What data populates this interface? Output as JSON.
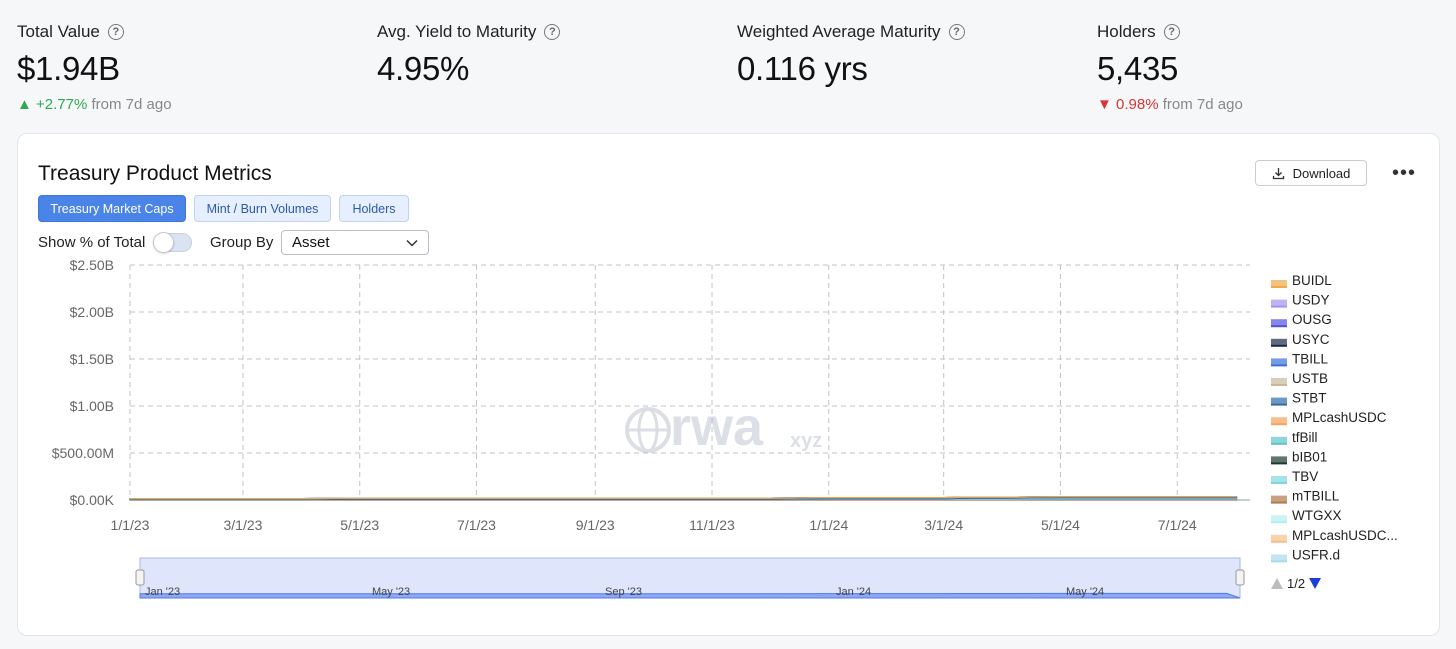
{
  "metrics": [
    {
      "label": "Total Value",
      "value": "$1.94B",
      "change_arrow": "▲",
      "change": "+2.77%",
      "change_suffix": "from 7d ago",
      "direction": "up"
    },
    {
      "label": "Avg. Yield to Maturity",
      "value": "4.95%"
    },
    {
      "label": "Weighted Average Maturity",
      "value": "0.116 yrs"
    },
    {
      "label": "Holders",
      "value": "5,435",
      "change_arrow": "▼",
      "change": "0.98%",
      "change_suffix": "from 7d ago",
      "direction": "down"
    }
  ],
  "help_glyph": "?",
  "card": {
    "title": "Treasury Product Metrics",
    "download_label": "Download",
    "more_label": "•••",
    "tabs": [
      {
        "label": "Treasury Market Caps",
        "active": true
      },
      {
        "label": "Mint / Burn Volumes",
        "active": false
      },
      {
        "label": "Holders",
        "active": false
      }
    ],
    "show_pct_label": "Show % of Total",
    "show_pct_enabled": false,
    "group_by_label": "Group By",
    "group_by_value": "Asset"
  },
  "watermark": {
    "text": "rwa",
    "suffix": "xyz"
  },
  "legend_page": "1/2",
  "colors": {
    "accent": "#4a84e8",
    "up": "#2fa84f",
    "down": "#d93535"
  },
  "chart_data": {
    "type": "area",
    "stacked": true,
    "grid": true,
    "legend_position": "right",
    "x": [
      "1/1/23",
      "2/1/23",
      "3/1/23",
      "4/1/23",
      "5/1/23",
      "6/1/23",
      "7/1/23",
      "8/1/23",
      "9/1/23",
      "10/1/23",
      "11/1/23",
      "12/1/23",
      "1/1/24",
      "2/1/24",
      "3/1/24",
      "3/15/24",
      "4/1/24",
      "5/1/24",
      "6/1/24",
      "7/1/24",
      "8/1/24"
    ],
    "x_tick_labels": [
      "1/1/23",
      "3/1/23",
      "5/1/23",
      "7/1/23",
      "9/1/23",
      "11/1/23",
      "1/1/24",
      "3/1/24",
      "5/1/24",
      "7/1/24"
    ],
    "ylim": [
      0,
      2500000000
    ],
    "y_tick_labels": [
      "$0.00K",
      "$500.00M",
      "$1.00B",
      "$1.50B",
      "$2.00B",
      "$2.50B"
    ],
    "navigator_labels": [
      "Jan '23",
      "May '23",
      "Sep '23",
      "Jan '24",
      "May '24"
    ],
    "series": [
      {
        "name": "mTBILL",
        "color": "#b07a4a",
        "values": [
          5,
          5,
          5,
          5,
          5,
          5,
          5,
          5,
          5,
          5,
          5,
          5,
          5,
          5,
          5,
          5,
          5,
          5,
          5,
          5,
          5
        ]
      },
      {
        "name": "TBILL",
        "color": "#3e6fd8",
        "values": [
          0,
          0,
          0,
          0,
          5,
          5,
          5,
          5,
          5,
          5,
          5,
          5,
          5,
          5,
          5,
          5,
          5,
          5,
          5,
          5,
          5
        ]
      },
      {
        "name": "tfBill",
        "color": "#5ec4c8",
        "values": [
          0,
          0,
          0,
          0,
          0,
          0,
          0,
          0,
          0,
          0,
          0,
          0,
          0,
          0,
          0,
          0,
          0,
          5,
          5,
          5,
          5
        ]
      },
      {
        "name": "USTB",
        "color": "#c7b99b",
        "values": [
          0,
          0,
          0,
          0,
          0,
          0,
          0,
          0,
          0,
          0,
          0,
          0,
          5,
          5,
          5,
          5,
          5,
          5,
          5,
          5,
          5
        ]
      },
      {
        "name": "USFR.d",
        "color": "#a8dbe8",
        "values": [
          0,
          0,
          0,
          0,
          0,
          0,
          0,
          0,
          0,
          0,
          0,
          0,
          0,
          0,
          0,
          5,
          5,
          5,
          5,
          5,
          5
        ]
      },
      {
        "name": "bIB01",
        "color": "#1d3b2e",
        "values": [
          0,
          0,
          0,
          0,
          0,
          0,
          0,
          0,
          0,
          0,
          0,
          0,
          0,
          0,
          0,
          0,
          0,
          0,
          0,
          0,
          0
        ]
      },
      {
        "name": "STBT",
        "color": "#2f6ea5",
        "values": [
          10,
          10,
          10,
          10,
          10,
          10,
          10,
          10,
          10,
          10,
          10,
          10,
          10,
          10,
          10,
          10,
          10,
          10,
          10,
          10,
          10
        ]
      },
      {
        "name": "MPLcashUSDC",
        "color": "#f3a45a",
        "values": [
          0,
          0,
          0,
          0,
          0,
          0,
          0,
          0,
          0,
          0,
          0,
          0,
          0,
          0,
          0,
          0,
          0,
          0,
          0,
          0,
          0
        ]
      },
      {
        "name": "MPLcashUSDC...",
        "color": "#f7bf8c",
        "values": [
          0,
          0,
          0,
          0,
          0,
          0,
          0,
          0,
          0,
          0,
          0,
          0,
          0,
          0,
          0,
          0,
          0,
          0,
          0,
          0,
          0
        ]
      },
      {
        "name": "TBV",
        "color": "#7dd8e0",
        "values": [
          0,
          0,
          0,
          0,
          0,
          0,
          0,
          0,
          0,
          0,
          0,
          0,
          0,
          0,
          0,
          0,
          0,
          0,
          0,
          0,
          0
        ]
      },
      {
        "name": "WTGXX",
        "color": "#b7ecef",
        "values": [
          0,
          0,
          0,
          0,
          0,
          0,
          0,
          0,
          0,
          0,
          0,
          0,
          0,
          0,
          0,
          0,
          0,
          0,
          0,
          0,
          0
        ]
      },
      {
        "name": "USYC",
        "color": "#1a2d47",
        "values": [
          0,
          0,
          0,
          0,
          0,
          0,
          0,
          0,
          0,
          0,
          0,
          0,
          0,
          0,
          0,
          0,
          0,
          0,
          0,
          0,
          0
        ]
      },
      {
        "name": "OUSG",
        "color": "#5252e2",
        "values": [
          0,
          0,
          0,
          0,
          0,
          0,
          0,
          0,
          0,
          0,
          0,
          0,
          0,
          0,
          0,
          0,
          0,
          0,
          0,
          0,
          0
        ]
      },
      {
        "name": "USDY",
        "color": "#a293f0",
        "values": [
          0,
          0,
          0,
          0,
          0,
          0,
          0,
          0,
          0,
          0,
          0,
          0,
          0,
          0,
          0,
          0,
          0,
          0,
          0,
          0,
          0
        ]
      },
      {
        "name": "BUIDL",
        "color": "#f0a848",
        "values": [
          0,
          0,
          0,
          0,
          0,
          0,
          0,
          0,
          0,
          0,
          0,
          0,
          0,
          0,
          0,
          0,
          0,
          0,
          0,
          0,
          0
        ]
      }
    ]
  }
}
